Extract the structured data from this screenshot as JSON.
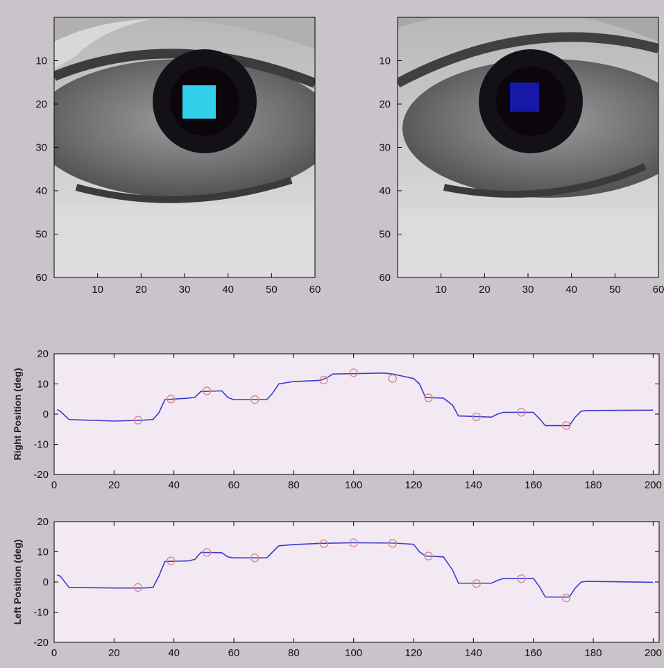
{
  "figure": {
    "background": "#cbc3cb",
    "plot_background": "#f3e9f3",
    "line_color": "#3a3ad0",
    "marker_color": "#d88a8a",
    "right_pupil_color": "#32d0ea",
    "left_pupil_color": "#1818a8"
  },
  "chart_data": [
    {
      "type": "heatmap",
      "description_source": "eye image panel (grayscale), axes 0-60 px",
      "xlim": [
        0,
        60
      ],
      "ylim": [
        60,
        0
      ],
      "xticks": [
        10,
        20,
        30,
        40,
        50,
        60
      ],
      "yticks": [
        10,
        20,
        30,
        40,
        50,
        60
      ],
      "pupil_center": [
        34,
        20
      ],
      "grid": false
    },
    {
      "type": "heatmap",
      "description_source": "eye image panel (grayscale), axes 0-60 px",
      "xlim": [
        0,
        60
      ],
      "ylim": [
        60,
        0
      ],
      "xticks": [
        10,
        20,
        30,
        40,
        50,
        60
      ],
      "yticks": [
        10,
        20,
        30,
        40,
        50,
        60
      ],
      "pupil_center": [
        30,
        20
      ],
      "grid": false
    },
    {
      "type": "line",
      "ylabel": "Right Position (deg)",
      "xlabel": "",
      "xlim": [
        0,
        202
      ],
      "ylim": [
        -20,
        20
      ],
      "xticks": [
        0,
        20,
        40,
        60,
        80,
        100,
        120,
        140,
        160,
        180,
        200
      ],
      "yticks": [
        20,
        10,
        0,
        -10,
        -20
      ],
      "grid": false,
      "series": [
        {
          "x": [
            1,
            2,
            5,
            20,
            30,
            33,
            35,
            37,
            45,
            47,
            49,
            56,
            58,
            60,
            71,
            73,
            75,
            80,
            89,
            91,
            93,
            110,
            113,
            120,
            122,
            124,
            130,
            133,
            135,
            146,
            148,
            150,
            160,
            162,
            164,
            172,
            174,
            176,
            178,
            200
          ],
          "y": [
            1.5,
            1,
            -1.8,
            -2.3,
            -2,
            -1.8,
            0.5,
            4.8,
            5.3,
            5.6,
            7.5,
            7.7,
            5.5,
            4.8,
            4.8,
            7,
            10,
            10.8,
            11.2,
            12,
            13.3,
            13.6,
            13.3,
            11.8,
            10,
            5.5,
            5.3,
            3,
            -0.6,
            -1,
            0,
            0.6,
            0.6,
            -1.5,
            -3.8,
            -3.8,
            -1,
            1,
            1.2,
            1.3
          ]
        }
      ],
      "markers": {
        "x": [
          28,
          39,
          51,
          67,
          90,
          100,
          113,
          125,
          141,
          156,
          171
        ],
        "y": [
          -2,
          5,
          7.7,
          4.8,
          11.3,
          13.7,
          11.8,
          5.4,
          -0.9,
          0.6,
          -3.8
        ]
      }
    },
    {
      "type": "line",
      "ylabel": "Left Position (deg)",
      "xlabel": "",
      "xlim": [
        0,
        202
      ],
      "ylim": [
        -20,
        20
      ],
      "xticks": [
        0,
        20,
        40,
        60,
        80,
        100,
        120,
        140,
        160,
        180,
        200
      ],
      "yticks": [
        20,
        10,
        0,
        -10,
        -20
      ],
      "grid": false,
      "series": [
        {
          "x": [
            1,
            2,
            5,
            20,
            30,
            33,
            35,
            37,
            45,
            47,
            49,
            56,
            58,
            60,
            71,
            73,
            75,
            80,
            89,
            100,
            113,
            120,
            122,
            124,
            130,
            133,
            135,
            146,
            148,
            150,
            160,
            162,
            164,
            172,
            174,
            176,
            178,
            200
          ],
          "y": [
            2.3,
            2,
            -1.8,
            -2,
            -2,
            -1.8,
            2,
            6.8,
            7,
            7.5,
            9.8,
            9.7,
            8.3,
            8,
            8,
            10,
            12,
            12.4,
            12.8,
            13,
            12.9,
            12.5,
            10,
            8.6,
            8.3,
            4,
            -0.4,
            -0.4,
            0.5,
            1.2,
            1.2,
            -1.5,
            -5,
            -5,
            -2,
            0,
            0.2,
            -0.1
          ]
        }
      ],
      "markers": {
        "x": [
          28,
          39,
          51,
          67,
          90,
          100,
          113,
          125,
          141,
          156,
          171
        ],
        "y": [
          -1.8,
          7,
          9.8,
          8,
          12.7,
          13,
          12.8,
          8.6,
          -0.5,
          1.1,
          -5.3
        ]
      }
    }
  ]
}
